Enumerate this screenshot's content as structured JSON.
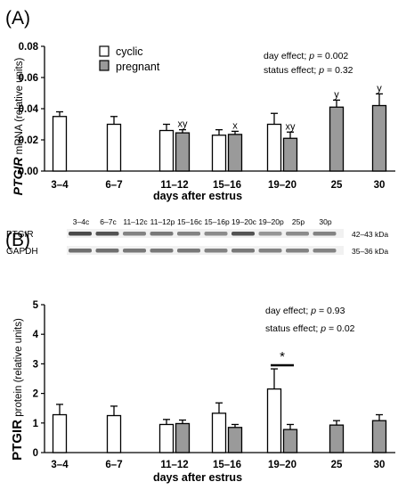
{
  "panel_a": {
    "letter": "(A)",
    "legend": [
      {
        "name": "cyclic",
        "color": "#ffffff"
      },
      {
        "name": "pregnant",
        "color": "#9a9a9a"
      }
    ],
    "stats": {
      "line1_prefix": "day effect; ",
      "line1_p": "p",
      "line1_value": " = 0.002",
      "line2_prefix": "status effect; ",
      "line2_p": "p",
      "line2_value": " = 0.32"
    }
  },
  "panel_b": {
    "letter": "(B)",
    "stats": {
      "line1_prefix": "day effect; ",
      "line1_p": "p",
      "line1_value": " = 0.93",
      "line2_prefix": "status effect; ",
      "line2_p": "p",
      "line2_value": " = 0.02"
    },
    "blot": {
      "lanes": [
        "3–4c",
        "6–7c",
        "11–12c",
        "11–12p",
        "15–16c",
        "15–16p",
        "19–20c",
        "19–20p",
        "25p",
        "30p"
      ],
      "rows": [
        {
          "label": "PTGIR",
          "kda": "42–43 kDa",
          "intensity": [
            0.85,
            0.8,
            0.55,
            0.6,
            0.55,
            0.5,
            0.8,
            0.45,
            0.5,
            0.55
          ]
        },
        {
          "label": "GAPDH",
          "kda": "35–36 kDa",
          "intensity": [
            0.65,
            0.65,
            0.6,
            0.6,
            0.6,
            0.55,
            0.6,
            0.55,
            0.55,
            0.55
          ]
        }
      ]
    }
  },
  "chart_data": [
    {
      "type": "bar",
      "ylabel_italic": "PTGIR",
      "ylabel_rest": " mRNA (relative units)",
      "xlabel": "days after estrus",
      "categories": [
        "3–4",
        "6–7",
        "11–12",
        "15–16",
        "19–20",
        "25",
        "30"
      ],
      "yticks": [
        "0.00",
        "0.02",
        "0.04",
        "0.06",
        "0.08"
      ],
      "ylim": [
        0,
        0.08
      ],
      "series": [
        {
          "name": "cyclic",
          "color": "#ffffff",
          "values": [
            0.035,
            0.03,
            0.026,
            0.023,
            0.03,
            null,
            null
          ],
          "errors": [
            0.003,
            0.005,
            0.004,
            0.0035,
            0.007,
            null,
            null
          ]
        },
        {
          "name": "pregnant",
          "color": "#9a9a9a",
          "values": [
            null,
            null,
            0.0245,
            0.0235,
            0.021,
            0.041,
            0.042
          ],
          "errors": [
            null,
            null,
            0.002,
            0.002,
            0.004,
            0.0045,
            0.0075
          ]
        }
      ],
      "annotations": [
        {
          "category": "11–12",
          "series": "pregnant",
          "text": "xy"
        },
        {
          "category": "15–16",
          "series": "pregnant",
          "text": "x"
        },
        {
          "category": "19–20",
          "series": "pregnant",
          "text": "xy"
        },
        {
          "category": "25",
          "series": "pregnant",
          "text": "y"
        },
        {
          "category": "30",
          "series": "pregnant",
          "text": "y"
        }
      ]
    },
    {
      "type": "bar",
      "ylabel_big": "PTGIR",
      "ylabel_rest": " protein (relative units)",
      "xlabel": "days after estrus",
      "categories": [
        "3–4",
        "6–7",
        "11–12",
        "15–16",
        "19–20",
        "25",
        "30"
      ],
      "yticks": [
        "0",
        "1",
        "2",
        "3",
        "4",
        "5"
      ],
      "ylim": [
        0,
        5
      ],
      "series": [
        {
          "name": "cyclic",
          "color": "#ffffff",
          "values": [
            1.28,
            1.25,
            0.95,
            1.33,
            2.15,
            null,
            null
          ],
          "errors": [
            0.35,
            0.32,
            0.17,
            0.35,
            0.68,
            null,
            null
          ]
        },
        {
          "name": "pregnant",
          "color": "#9a9a9a",
          "values": [
            null,
            null,
            0.98,
            0.85,
            0.78,
            0.93,
            1.08
          ],
          "errors": [
            null,
            null,
            0.12,
            0.1,
            0.17,
            0.15,
            0.2
          ]
        }
      ],
      "significance": {
        "category": "19–20",
        "text": "*"
      }
    }
  ]
}
